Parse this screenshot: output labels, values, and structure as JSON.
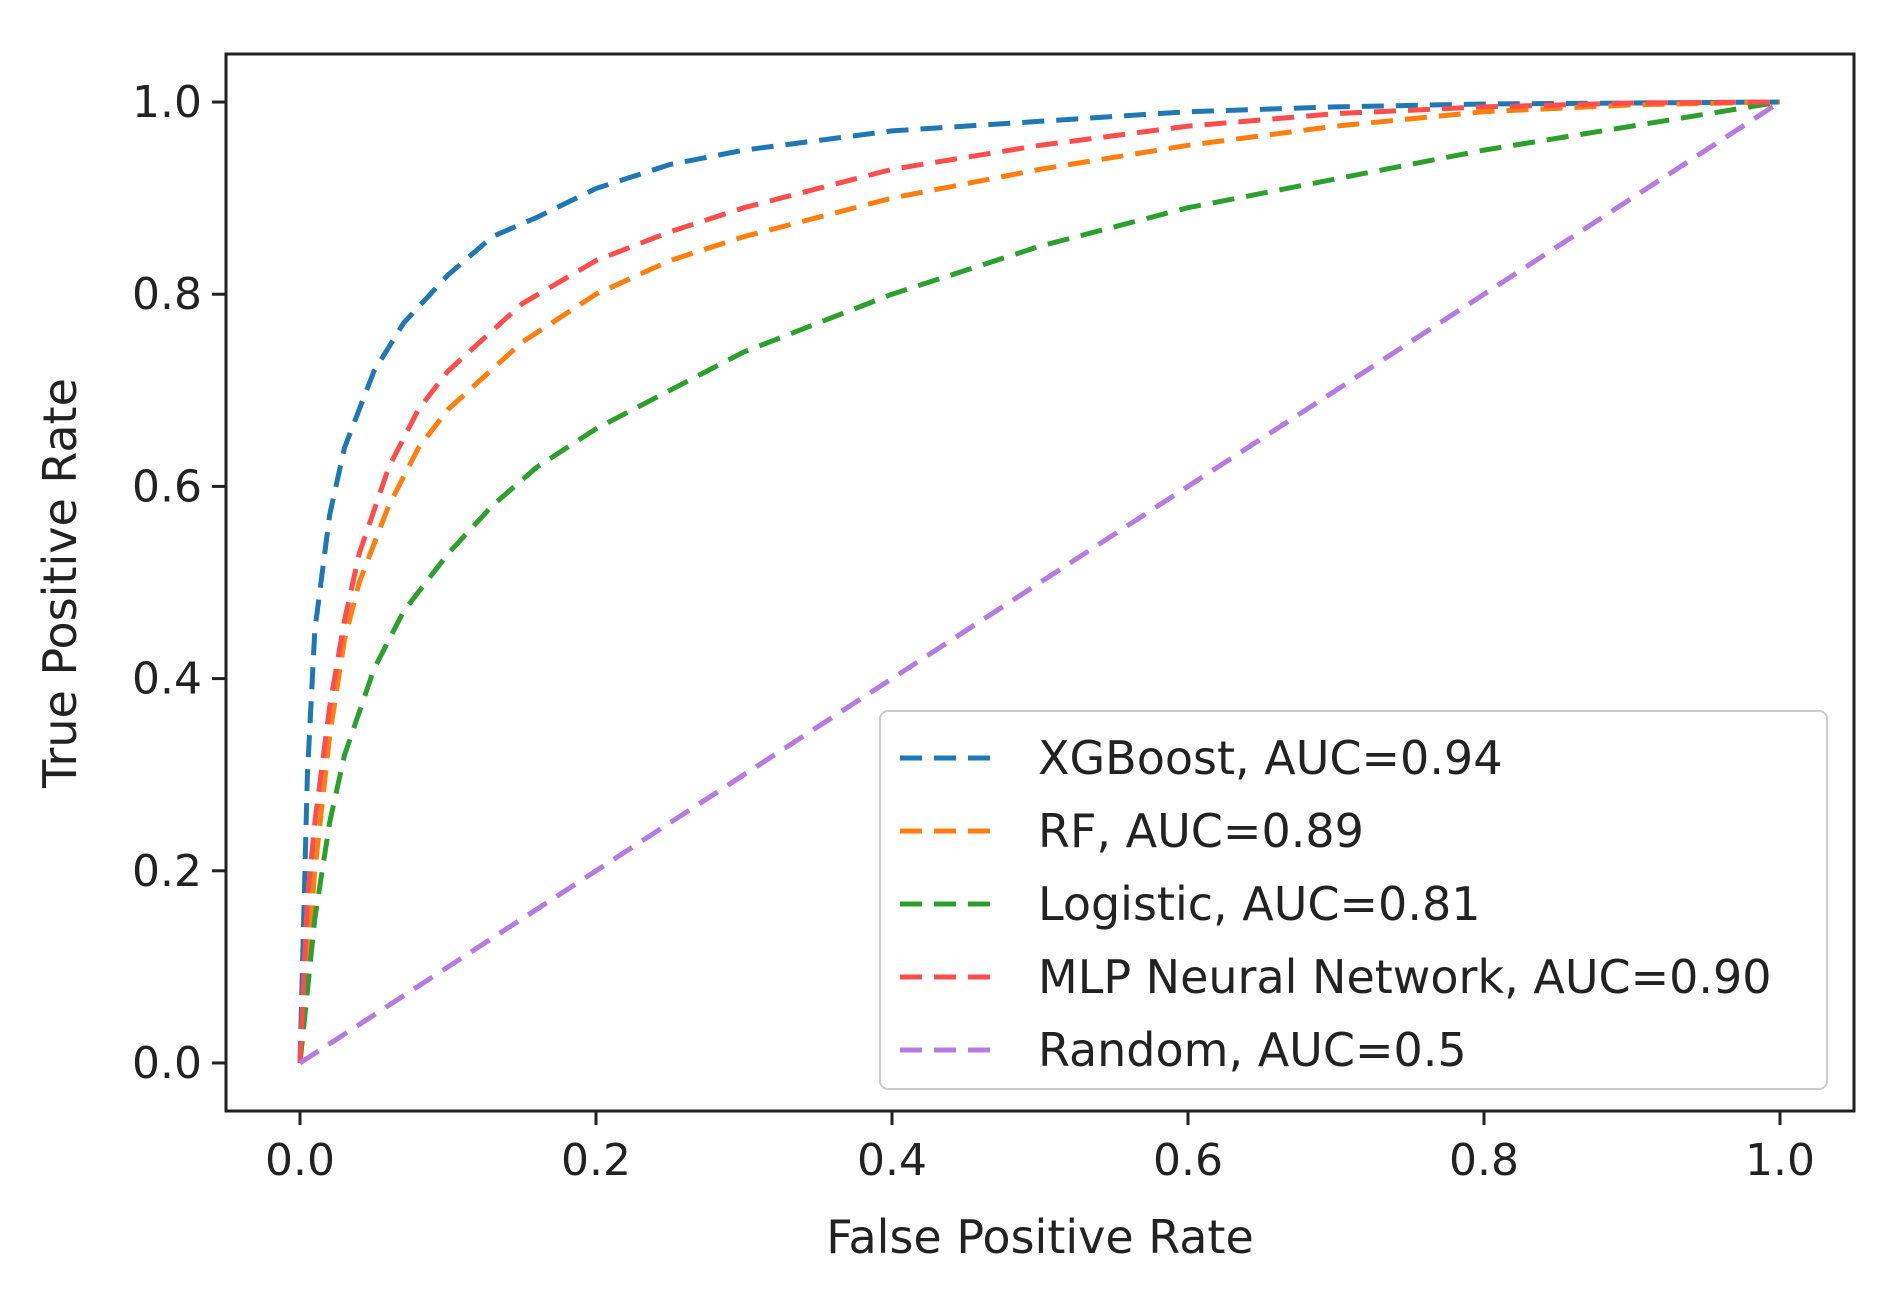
{
  "chart_data": {
    "type": "line",
    "title": "",
    "xlabel": "False Positive Rate",
    "ylabel": "True Positive Rate",
    "xlim": [
      -0.05,
      1.05
    ],
    "ylim": [
      -0.05,
      1.05
    ],
    "grid": false,
    "legend_position": "lower-right",
    "x_ticks": [
      0.0,
      0.2,
      0.4,
      0.6,
      0.8,
      1.0
    ],
    "x_tick_labels": [
      "0.0",
      "0.2",
      "0.4",
      "0.6",
      "0.8",
      "1.0"
    ],
    "y_ticks": [
      0.0,
      0.2,
      0.4,
      0.6,
      0.8,
      1.0
    ],
    "y_tick_labels": [
      "0.0",
      "0.2",
      "0.4",
      "0.6",
      "0.8",
      "1.0"
    ],
    "series": [
      {
        "name": "XGBoost, AUC=0.94",
        "color": "#1f77b4",
        "line_style": "dashed",
        "x": [
          0,
          0.005,
          0.01,
          0.02,
          0.03,
          0.05,
          0.07,
          0.1,
          0.13,
          0.16,
          0.2,
          0.25,
          0.3,
          0.4,
          0.5,
          0.6,
          0.7,
          0.8,
          0.9,
          1.0
        ],
        "y": [
          0,
          0.3,
          0.45,
          0.57,
          0.64,
          0.72,
          0.77,
          0.82,
          0.86,
          0.88,
          0.91,
          0.935,
          0.95,
          0.97,
          0.98,
          0.99,
          0.995,
          0.998,
          0.999,
          1.0
        ]
      },
      {
        "name": "RF, AUC=0.89",
        "color": "#ff7f0e",
        "line_style": "dashed",
        "x": [
          0,
          0.01,
          0.02,
          0.03,
          0.04,
          0.06,
          0.08,
          0.1,
          0.15,
          0.2,
          0.25,
          0.3,
          0.4,
          0.5,
          0.6,
          0.7,
          0.8,
          0.9,
          1.0
        ],
        "y": [
          0,
          0.2,
          0.34,
          0.44,
          0.5,
          0.58,
          0.64,
          0.68,
          0.75,
          0.8,
          0.835,
          0.86,
          0.9,
          0.93,
          0.955,
          0.975,
          0.99,
          0.997,
          1.0
        ]
      },
      {
        "name": "Logistic, AUC=0.81",
        "color": "#2ca02c",
        "line_style": "dashed",
        "x": [
          0,
          0.01,
          0.02,
          0.03,
          0.05,
          0.07,
          0.1,
          0.13,
          0.16,
          0.2,
          0.25,
          0.3,
          0.4,
          0.5,
          0.6,
          0.7,
          0.8,
          0.9,
          1.0
        ],
        "y": [
          0,
          0.15,
          0.25,
          0.32,
          0.41,
          0.47,
          0.53,
          0.58,
          0.62,
          0.66,
          0.7,
          0.74,
          0.8,
          0.85,
          0.89,
          0.92,
          0.95,
          0.975,
          1.0
        ]
      },
      {
        "name": "MLP Neural Network, AUC=0.90",
        "color": "#ff4d4d",
        "line_style": "dashed",
        "x": [
          0,
          0.005,
          0.01,
          0.02,
          0.03,
          0.04,
          0.06,
          0.08,
          0.1,
          0.15,
          0.2,
          0.25,
          0.3,
          0.4,
          0.5,
          0.6,
          0.7,
          0.8,
          0.9,
          1.0
        ],
        "y": [
          0,
          0.17,
          0.25,
          0.37,
          0.46,
          0.53,
          0.62,
          0.68,
          0.72,
          0.79,
          0.835,
          0.865,
          0.89,
          0.93,
          0.955,
          0.975,
          0.988,
          0.995,
          0.999,
          1.0
        ]
      },
      {
        "name": "Random, AUC=0.5",
        "color": "#b57be0",
        "line_style": "dashed",
        "x": [
          0,
          1.0
        ],
        "y": [
          0,
          1.0
        ]
      }
    ]
  }
}
